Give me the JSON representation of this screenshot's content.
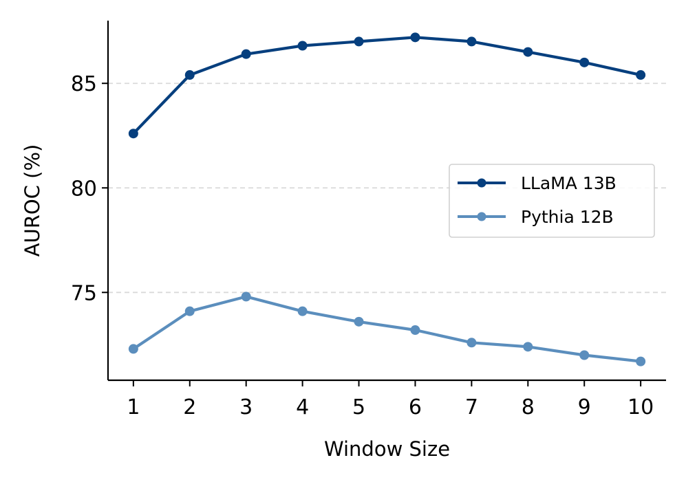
{
  "chart_data": {
    "type": "line",
    "title": "",
    "xlabel": "Window Size",
    "ylabel": "AUROC (%)",
    "x": [
      1,
      2,
      3,
      4,
      5,
      6,
      7,
      8,
      9,
      10
    ],
    "xticks": [
      1,
      2,
      3,
      4,
      5,
      6,
      7,
      8,
      9,
      10
    ],
    "yticks": [
      75,
      80,
      85
    ],
    "xlim": [
      0.55,
      10.45
    ],
    "ylim": [
      70.8,
      88.0
    ],
    "grid": "y-dashed",
    "legend_position": "center-right",
    "series": [
      {
        "name": "LLaMA 13B",
        "color": "#063f7e",
        "values": [
          82.6,
          85.4,
          86.4,
          86.8,
          87.0,
          87.2,
          87.0,
          86.5,
          86.0,
          85.4
        ]
      },
      {
        "name": "Pythia 12B",
        "color": "#5b8ebd",
        "values": [
          72.3,
          74.1,
          74.8,
          74.1,
          73.6,
          73.2,
          72.6,
          72.4,
          72.0,
          71.7
        ]
      }
    ]
  }
}
